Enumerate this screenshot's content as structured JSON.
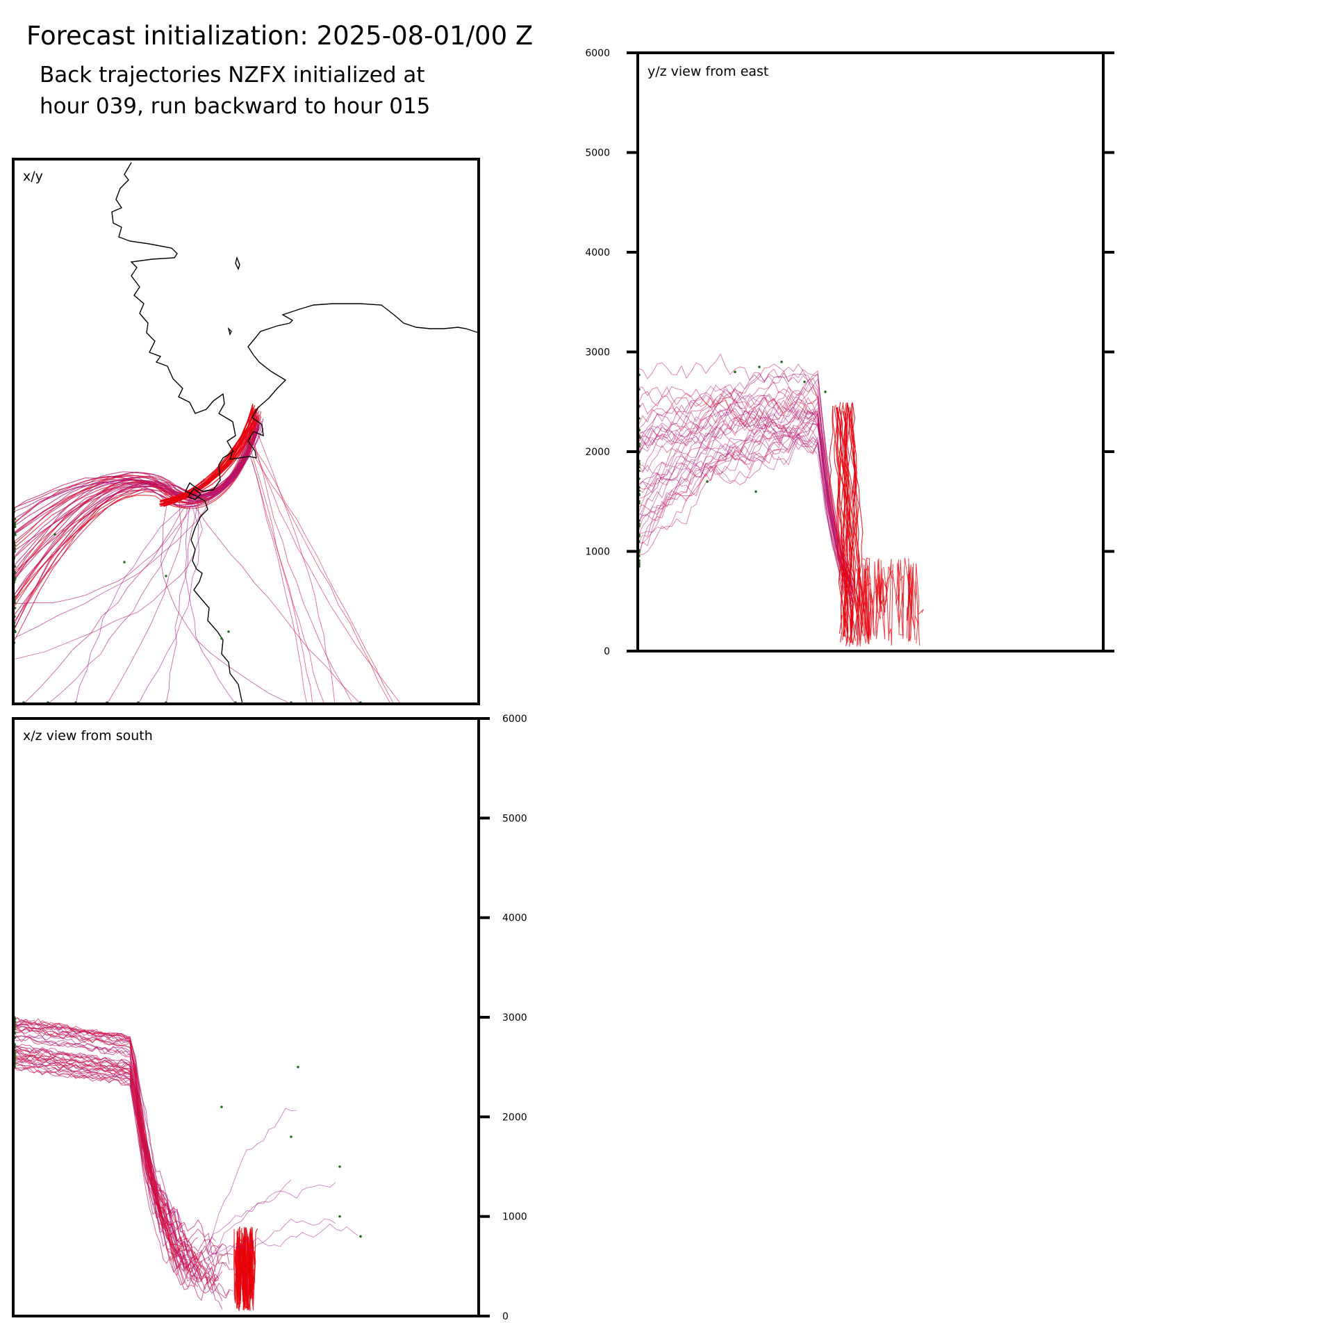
{
  "figure": {
    "title": "Forecast initialization: 2025-08-01/00 Z",
    "subtitle_line1": "Back trajectories NZFX initialized at",
    "subtitle_line2": "hour 039, run backward to hour 015"
  },
  "colors": {
    "trajectory_recent": "#e8000b",
    "trajectory_old": "#9b1fa3",
    "start_marker": "#1f6f1f",
    "coastline": "#000000",
    "frame": "#000000"
  },
  "chart_data": [
    {
      "type": "line",
      "panel": "x/y",
      "label": "x/y",
      "xlabel": "",
      "ylabel": "",
      "grid": false,
      "description_of_content": "map plan view with coastline and trajectory paths"
    },
    {
      "type": "line",
      "panel": "x/z",
      "label": "x/z view from south",
      "xlabel": "",
      "ylabel": "",
      "ylim": [
        0,
        6000
      ],
      "yticks": [
        0,
        1000,
        2000,
        3000,
        4000,
        5000,
        6000
      ],
      "ytick_side": "right",
      "grid": false,
      "series_summary": {
        "start_height_range": [
          2500,
          3100
        ],
        "end_height_range": [
          0,
          800
        ],
        "dense_surface_cluster_height": [
          0,
          800
        ]
      }
    },
    {
      "type": "line",
      "panel": "y/z",
      "label": "y/z view from east",
      "xlabel": "",
      "ylabel": "",
      "ylim": [
        0,
        6000
      ],
      "yticks": [
        0,
        1000,
        2000,
        3000,
        4000,
        5000,
        6000
      ],
      "ytick_side": "both",
      "grid": false,
      "series_summary": {
        "start_height_range": [
          800,
          3000
        ],
        "end_height_range": [
          0,
          1500
        ],
        "dense_surface_cluster_height": [
          0,
          800
        ]
      }
    }
  ]
}
